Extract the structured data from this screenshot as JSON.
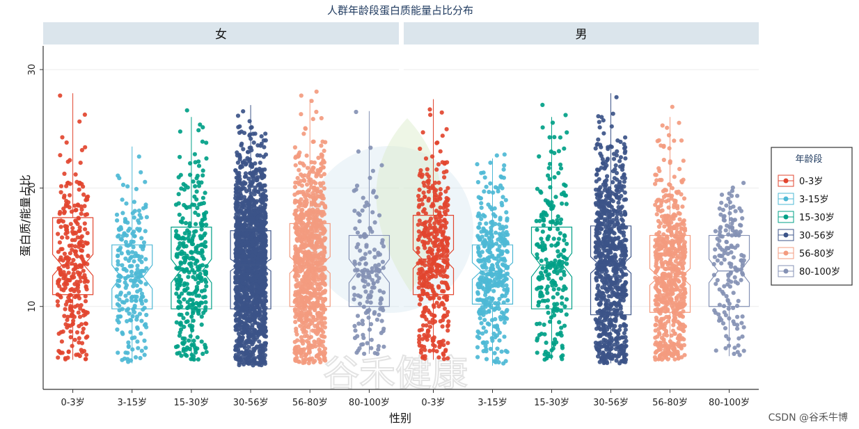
{
  "chart_data": {
    "type": "boxplot-jitter",
    "title": "人群年龄段蛋白质能量占比分布",
    "xlabel": "性别",
    "ylabel": "蛋白质/能量占比",
    "yticks": [
      10,
      20,
      30
    ],
    "ylim": [
      3,
      32
    ],
    "legend": {
      "title": "年龄段",
      "placement": "right",
      "items": [
        {
          "label": "0-3岁",
          "color": "#e2452f"
        },
        {
          "label": "3-15岁",
          "color": "#4db8d5"
        },
        {
          "label": "15-30岁",
          "color": "#00a087"
        },
        {
          "label": "30-56岁",
          "color": "#3c5488"
        },
        {
          "label": "56-80岁",
          "color": "#f39b7f"
        },
        {
          "label": "80-100岁",
          "color": "#8491b4"
        }
      ]
    },
    "panels": [
      {
        "label": "女",
        "groups": [
          {
            "category": "0-3岁",
            "q1": 11.0,
            "median": 13.5,
            "q3": 17.5,
            "notch": [
              12.6,
              14.4
            ],
            "min": 5.5,
            "max": 28.0,
            "n": 300
          },
          {
            "category": "3-15岁",
            "q1": 9.8,
            "median": 12.5,
            "q3": 15.2,
            "notch": [
              11.5,
              13.5
            ],
            "min": 5.2,
            "max": 23.5,
            "n": 220
          },
          {
            "category": "15-30岁",
            "q1": 9.8,
            "median": 13.0,
            "q3": 16.7,
            "notch": [
              12.0,
              14.0
            ],
            "min": 5.5,
            "max": 26.0,
            "n": 320
          },
          {
            "category": "30-56岁",
            "q1": 9.8,
            "median": 13.5,
            "q3": 16.4,
            "notch": [
              13.0,
              14.0
            ],
            "min": 5.0,
            "max": 27.0,
            "n": 1600
          },
          {
            "category": "56-80岁",
            "q1": 10.0,
            "median": 13.5,
            "q3": 17.0,
            "notch": [
              12.8,
              14.2
            ],
            "min": 5.2,
            "max": 27.5,
            "n": 900
          },
          {
            "category": "80-100岁",
            "q1": 10.0,
            "median": 13.0,
            "q3": 16.0,
            "notch": [
              12.0,
              14.0
            ],
            "min": 6.0,
            "max": 26.5,
            "n": 160
          }
        ]
      },
      {
        "label": "男",
        "groups": [
          {
            "category": "0-3岁",
            "q1": 11.0,
            "median": 14.0,
            "q3": 17.7,
            "notch": [
              13.2,
              14.8
            ],
            "min": 5.5,
            "max": 27.5,
            "n": 420
          },
          {
            "category": "3-15岁",
            "q1": 10.2,
            "median": 13.0,
            "q3": 15.2,
            "notch": [
              12.3,
              13.7
            ],
            "min": 5.0,
            "max": 22.5,
            "n": 380
          },
          {
            "category": "15-30岁",
            "q1": 9.8,
            "median": 13.5,
            "q3": 16.7,
            "notch": [
              12.5,
              14.5
            ],
            "min": 5.5,
            "max": 26.0,
            "n": 230
          },
          {
            "category": "30-56岁",
            "q1": 9.3,
            "median": 13.5,
            "q3": 16.8,
            "notch": [
              12.8,
              14.2
            ],
            "min": 5.2,
            "max": 28.0,
            "n": 800
          },
          {
            "category": "56-80岁",
            "q1": 9.5,
            "median": 12.5,
            "q3": 16.0,
            "notch": [
              11.8,
              13.2
            ],
            "min": 5.5,
            "max": 26.0,
            "n": 650
          },
          {
            "category": "80-100岁",
            "q1": 10.0,
            "median": 13.0,
            "q3": 16.0,
            "notch": [
              12.0,
              14.0
            ],
            "min": 5.8,
            "max": 19.0,
            "n": 160
          }
        ]
      }
    ]
  },
  "watermark": {
    "text": "CSDN @谷禾牛博",
    "logo_text": "谷禾健康"
  }
}
